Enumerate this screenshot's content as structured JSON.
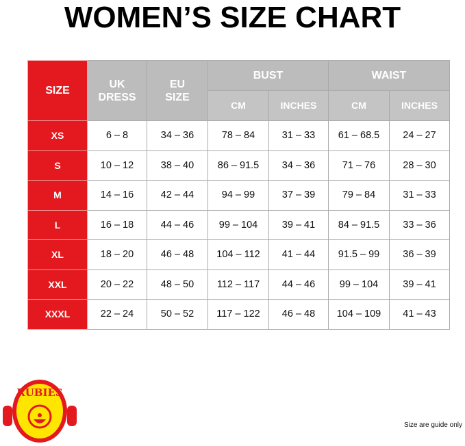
{
  "title": "WOMEN’S SIZE CHART",
  "headers": {
    "size": "SIZE",
    "uk_line1": "UK",
    "uk_line2": "DRESS",
    "eu_line1": "EU",
    "eu_line2": "SIZE",
    "bust": "BUST",
    "waist": "WAIST",
    "cm": "CM",
    "inches": "INCHES"
  },
  "rows": [
    [
      "XS",
      "6 – 8",
      "34 – 36",
      "78 – 84",
      "31 – 33",
      "61 – 68.5",
      "24 – 27"
    ],
    [
      "S",
      "10 – 12",
      "38 – 40",
      "86 – 91.5",
      "34 – 36",
      "71 – 76",
      "28 – 30"
    ],
    [
      "M",
      "14 – 16",
      "42 – 44",
      "94 – 99",
      "37 – 39",
      "79 – 84",
      "31 – 33"
    ],
    [
      "L",
      "16 – 18",
      "44 – 46",
      "99 – 104",
      "39 – 41",
      "84 – 91.5",
      "33 – 36"
    ],
    [
      "XL",
      "18 – 20",
      "46 – 48",
      "104 – 112",
      "41 – 44",
      "91.5 – 99",
      "36 – 39"
    ],
    [
      "XXL",
      "20 – 22",
      "48 – 50",
      "112 – 117",
      "44 – 46",
      "99 – 104",
      "39 – 41"
    ],
    [
      "XXXL",
      "22 – 24",
      "50 – 52",
      "117 – 122",
      "46 – 48",
      "104 – 109",
      "41 – 43"
    ]
  ],
  "logo_text": "RUBIES",
  "note": "Size are guide only",
  "colors": {
    "accent": "#e3191f",
    "header": "#bcbcbc",
    "logo_yellow": "#ffe600"
  }
}
